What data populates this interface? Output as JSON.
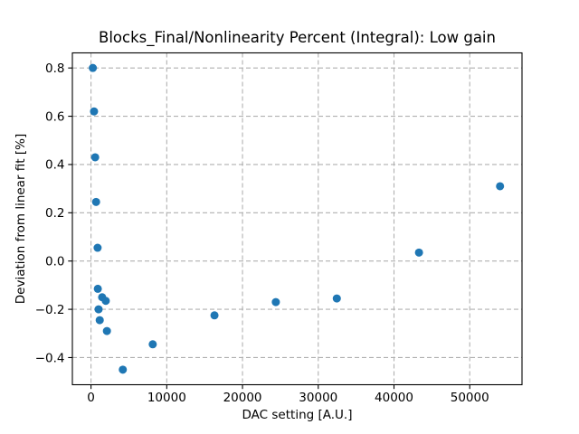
{
  "chart_data": {
    "type": "scatter",
    "title": "Blocks_Final/Nonlinearity Percent (Integral): Low gain",
    "xlabel": "DAC setting [A.U.]",
    "ylabel": "Deviation from linear fit [%]",
    "legend": false,
    "grid": true,
    "grid_line_style": "dashed",
    "grid_color": "#b0b0b0",
    "marker_color": "#1f77b4",
    "marker_size_px": 9,
    "xlim": [
      -2460,
      56900
    ],
    "ylim": [
      -0.5125,
      0.8625
    ],
    "xticks": [
      0,
      10000,
      20000,
      30000,
      40000,
      50000
    ],
    "xtick_labels": [
      "0",
      "10000",
      "20000",
      "30000",
      "40000",
      "50000"
    ],
    "yticks": [
      -0.4,
      -0.2,
      0.0,
      0.2,
      0.4,
      0.6,
      0.8
    ],
    "ytick_labels": [
      "−0.4",
      "−0.2",
      "0.0",
      "0.2",
      "0.4",
      "0.6",
      "0.8"
    ],
    "points": [
      {
        "x": 240,
        "y": 0.8
      },
      {
        "x": 400,
        "y": 0.62
      },
      {
        "x": 550,
        "y": 0.43
      },
      {
        "x": 670,
        "y": 0.245
      },
      {
        "x": 870,
        "y": 0.055
      },
      {
        "x": 900,
        "y": -0.115
      },
      {
        "x": 1000,
        "y": -0.2
      },
      {
        "x": 1150,
        "y": -0.245
      },
      {
        "x": 1470,
        "y": -0.15
      },
      {
        "x": 1950,
        "y": -0.165
      },
      {
        "x": 2100,
        "y": -0.29
      },
      {
        "x": 4200,
        "y": -0.45
      },
      {
        "x": 8150,
        "y": -0.345
      },
      {
        "x": 16300,
        "y": -0.225
      },
      {
        "x": 24400,
        "y": -0.17
      },
      {
        "x": 32450,
        "y": -0.155
      },
      {
        "x": 43300,
        "y": 0.035
      },
      {
        "x": 54000,
        "y": 0.31
      }
    ]
  }
}
